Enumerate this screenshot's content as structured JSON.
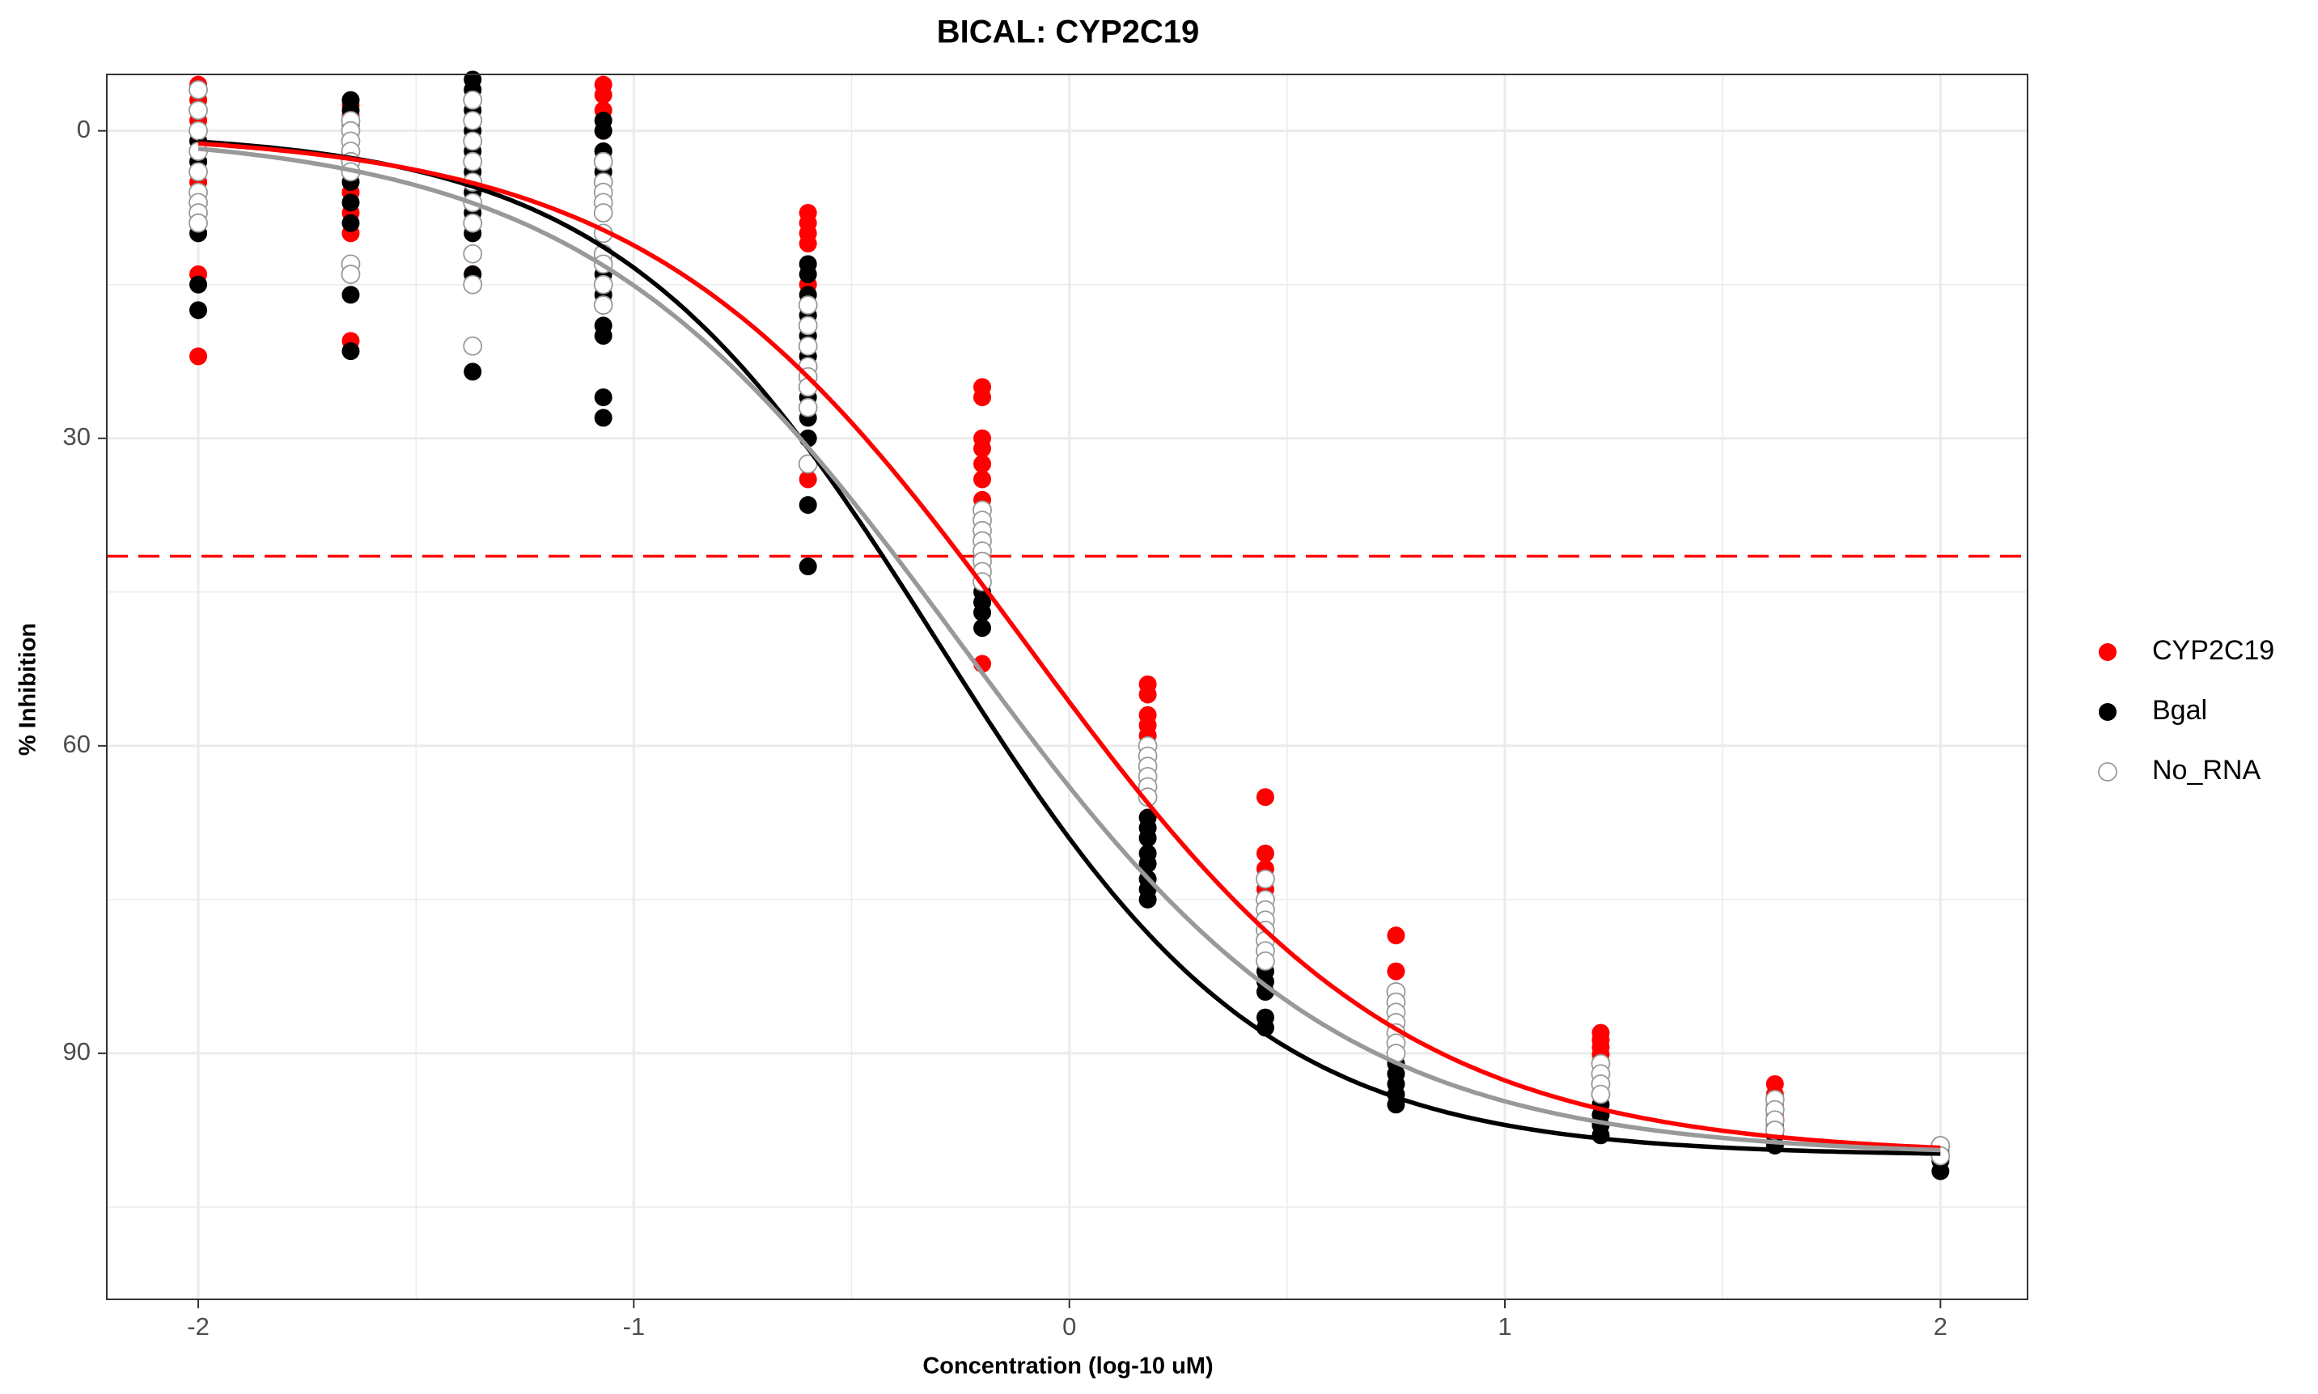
{
  "colors": {
    "CYP2C19": "#ff0000",
    "Bgal": "#000000",
    "No_RNA": "#999999",
    "cutoff_line": "#ff0000",
    "grid": "#ebebeb",
    "panel_border": "#333333"
  },
  "chart_data": {
    "type": "scatter",
    "title": "BICAL: CYP2C19",
    "xlabel": "Concentration (log-10 uM)",
    "ylabel": "% Inhibition",
    "y_reversed": true,
    "xlim": [
      -2.21,
      2.2
    ],
    "ylim": [
      -5.5,
      114
    ],
    "x_ticks": [
      -2,
      -1,
      0,
      1,
      2
    ],
    "y_ticks": [
      0,
      30,
      60,
      90
    ],
    "grid": true,
    "legend": {
      "position": "right",
      "entries": [
        {
          "label": "CYP2C19",
          "marker": "filled-circle",
          "color": "#ff0000"
        },
        {
          "label": "Bgal",
          "marker": "filled-circle",
          "color": "#000000"
        },
        {
          "label": "No_RNA",
          "marker": "open-circle",
          "color": "#999999"
        }
      ]
    },
    "reference_line": {
      "type": "horizontal",
      "y": 41.5,
      "style": "dashed",
      "color": "#ff0000"
    },
    "concentrations": [
      -2.0,
      -1.65,
      -1.37,
      -1.07,
      -0.6,
      -0.2,
      0.18,
      0.45,
      0.75,
      1.22,
      1.62,
      2.0
    ],
    "series": [
      {
        "name": "CYP2C19",
        "color": "#ff0000",
        "marker": "filled",
        "points": [
          {
            "x": -2.0,
            "y": [
              -4.5,
              -3,
              -1,
              1,
              3,
              5,
              7,
              14,
              22
            ]
          },
          {
            "x": -1.65,
            "y": [
              -2.5,
              -1.5,
              0,
              2,
              4,
              6,
              8,
              10,
              20.5
            ]
          },
          {
            "x": -1.37,
            "y": [
              -1,
              1,
              3,
              5,
              7,
              9,
              12,
              14
            ]
          },
          {
            "x": -1.07,
            "y": [
              -4.5,
              -3.5,
              -2,
              0,
              2,
              4,
              6
            ]
          },
          {
            "x": -0.6,
            "y": [
              8,
              9,
              10,
              11,
              15,
              18,
              20,
              22,
              34
            ]
          },
          {
            "x": -0.2,
            "y": [
              25,
              26,
              30,
              31,
              32.5,
              34,
              36,
              38,
              40,
              52
            ]
          },
          {
            "x": 0.18,
            "y": [
              54,
              55,
              57,
              58,
              59,
              61,
              62,
              63,
              65
            ]
          },
          {
            "x": 0.45,
            "y": [
              65,
              70.5,
              72,
              74,
              75,
              76,
              77,
              78
            ]
          },
          {
            "x": 0.75,
            "y": [
              78.5,
              82,
              84,
              85,
              86,
              87
            ]
          },
          {
            "x": 1.22,
            "y": [
              88,
              88.7,
              89.4,
              90.1,
              90.8
            ]
          },
          {
            "x": 1.62,
            "y": [
              93,
              94,
              95,
              96
            ]
          },
          {
            "x": 2.0,
            "y": [
              99.2,
              100
            ]
          }
        ]
      },
      {
        "name": "Bgal",
        "color": "#000000",
        "marker": "filled",
        "points": [
          {
            "x": -2.0,
            "y": [
              -2,
              0,
              1,
              2,
              3,
              4,
              6,
              10,
              15,
              17.5
            ]
          },
          {
            "x": -1.65,
            "y": [
              -3,
              -2,
              -0.5,
              1,
              2,
              3,
              5,
              7,
              9,
              14,
              16,
              21.5
            ]
          },
          {
            "x": -1.37,
            "y": [
              -5,
              -4,
              -2,
              0,
              2,
              4,
              6,
              8,
              10,
              12,
              14,
              23.5
            ]
          },
          {
            "x": -1.07,
            "y": [
              -1,
              0,
              2,
              4,
              6,
              8,
              10,
              12,
              14,
              16,
              19,
              20,
              26,
              28
            ]
          },
          {
            "x": -0.6,
            "y": [
              13,
              14,
              16,
              18,
              20,
              22,
              24,
              26,
              28,
              30,
              36.5,
              42.5
            ]
          },
          {
            "x": -0.2,
            "y": [
              37,
              38,
              39,
              40,
              41,
              42,
              43,
              44,
              45,
              46,
              47,
              48.5
            ]
          },
          {
            "x": 0.18,
            "y": [
              67,
              68,
              69,
              70.5,
              71.5,
              73,
              74,
              75
            ]
          },
          {
            "x": 0.45,
            "y": [
              79,
              80,
              81,
              82,
              83,
              84,
              86.5,
              87.5
            ]
          },
          {
            "x": 0.75,
            "y": [
              88,
              89,
              90,
              91,
              92,
              93,
              94,
              95
            ]
          },
          {
            "x": 1.22,
            "y": [
              94,
              95,
              96,
              97,
              98
            ]
          },
          {
            "x": 1.62,
            "y": [
              97,
              98,
              99
            ]
          },
          {
            "x": 2.0,
            "y": [
              99.5,
              100.5,
              101.5
            ]
          }
        ]
      },
      {
        "name": "No_RNA",
        "color": "#999999",
        "marker": "open",
        "points": [
          {
            "x": -2.0,
            "y": [
              -4,
              -2,
              0,
              2,
              4,
              6,
              7,
              8,
              9
            ]
          },
          {
            "x": -1.65,
            "y": [
              -1,
              0,
              1,
              2,
              3,
              4,
              13,
              14
            ]
          },
          {
            "x": -1.37,
            "y": [
              -3,
              -1,
              1,
              3,
              5,
              7,
              9,
              12,
              15,
              21
            ]
          },
          {
            "x": -1.07,
            "y": [
              3,
              5,
              6,
              7,
              8,
              10,
              12,
              13,
              15,
              17
            ]
          },
          {
            "x": -0.6,
            "y": [
              17,
              19,
              21,
              23,
              24,
              25,
              27,
              32.5
            ]
          },
          {
            "x": -0.2,
            "y": [
              37,
              38,
              39,
              40,
              41,
              42,
              43,
              44
            ]
          },
          {
            "x": 0.18,
            "y": [
              60,
              61,
              62,
              63,
              64,
              65
            ]
          },
          {
            "x": 0.45,
            "y": [
              73,
              75,
              76,
              77,
              78,
              79,
              80,
              81
            ]
          },
          {
            "x": 0.75,
            "y": [
              84,
              85,
              86,
              87,
              88,
              89,
              90
            ]
          },
          {
            "x": 1.22,
            "y": [
              91,
              92,
              93,
              94
            ]
          },
          {
            "x": 1.62,
            "y": [
              94.5,
              95.5,
              96.5,
              97.5
            ]
          },
          {
            "x": 2.0,
            "y": [
              99,
              100
            ]
          }
        ]
      }
    ],
    "fit_curves": [
      {
        "series": "CYP2C19",
        "color": "#ff0000",
        "model": "4PL",
        "bottom": 0,
        "top": 100,
        "log_ic50": -0.1,
        "hill": 1.0
      },
      {
        "series": "Bgal",
        "color": "#000000",
        "model": "4PL",
        "bottom": 0,
        "top": 100,
        "log_ic50": -0.3,
        "hill": 1.16
      },
      {
        "series": "No_RNA",
        "color": "#999999",
        "model": "4PL",
        "bottom": 0,
        "top": 100,
        "log_ic50": -0.25,
        "hill": 1.0
      }
    ]
  }
}
